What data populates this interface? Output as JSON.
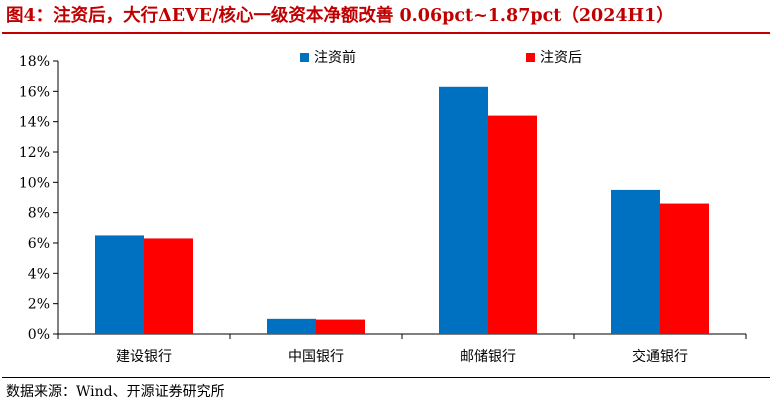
{
  "figure": {
    "title": "图4：注资后，大行ΔEVE/核心一级资本净额改善 0.06pct~1.87pct（2024H1）",
    "source": "数据来源：Wind、开源证券研究所"
  },
  "colors": {
    "title": "#c00000",
    "series_before": "#0070c0",
    "series_after": "#ff0000"
  },
  "chart_data": {
    "type": "bar",
    "categories": [
      "建设银行",
      "中国银行",
      "邮储银行",
      "交通银行"
    ],
    "series": [
      {
        "name": "注资前",
        "values": [
          6.5,
          1.0,
          16.3,
          9.5
        ]
      },
      {
        "name": "注资后",
        "values": [
          6.3,
          0.95,
          14.4,
          8.6
        ]
      }
    ],
    "yticks": [
      "0%",
      "2%",
      "4%",
      "6%",
      "8%",
      "10%",
      "12%",
      "14%",
      "16%",
      "18%"
    ],
    "ylim": [
      0,
      18
    ],
    "ylabel": "",
    "xlabel": "",
    "legend": "top-center",
    "grid": false
  }
}
